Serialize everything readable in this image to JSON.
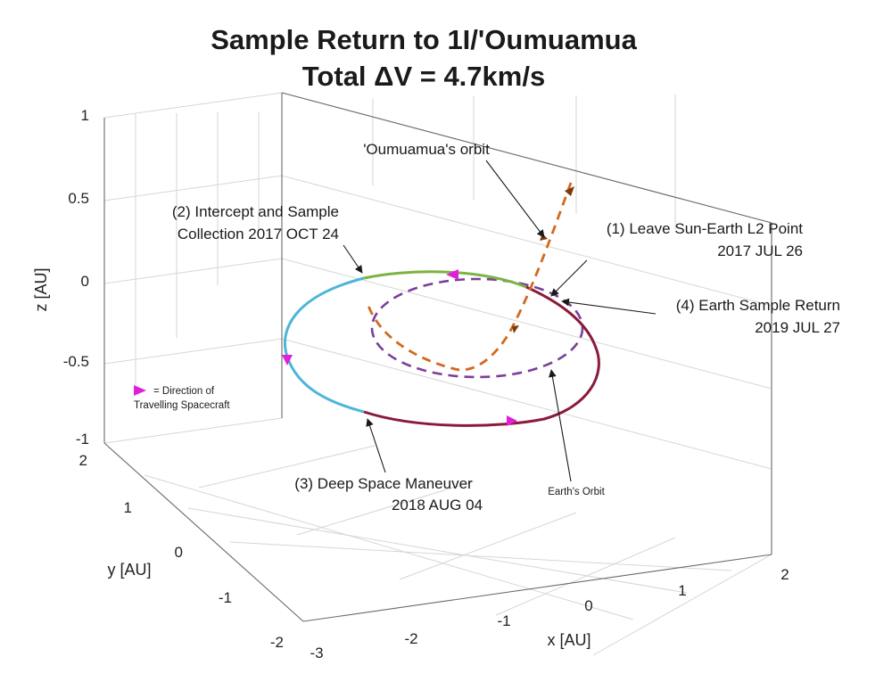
{
  "chart_data": {
    "type": "line",
    "projection": "3d",
    "title": [
      "Sample Return to 1I/'Oumuamua",
      "Total ΔV = 4.7km/s"
    ],
    "xlabel": "x [AU]",
    "ylabel": "y [AU]",
    "zlabel": "z [AU]",
    "xlim": [
      -3,
      2
    ],
    "ylim": [
      -2,
      2
    ],
    "zlim": [
      -1,
      1
    ],
    "xticks": [
      "-3",
      "-2",
      "-1",
      "0",
      "1",
      "2"
    ],
    "yticks": [
      "-2",
      "-1",
      "0",
      "1",
      "2"
    ],
    "zticks": [
      "-1",
      "-0.5",
      "0",
      "0.5",
      "1"
    ],
    "grid": true,
    "series": [
      {
        "role": "oumuamua-orbit",
        "style": "dashed",
        "color": "#d2691e",
        "x": [
          0.96,
          0.7,
          0.4,
          0.18,
          -0.02,
          -0.3,
          -0.58,
          -0.82,
          -0.95,
          -1.02
        ],
        "y": [
          -1.33,
          -1.02,
          -0.66,
          -0.38,
          -0.11,
          0.14,
          0.38,
          0.58,
          0.72,
          0.81
        ],
        "z": [
          0.6,
          0.42,
          0.22,
          0.05,
          -0.13,
          -0.23,
          -0.19,
          -0.12,
          -0.04,
          0.03
        ]
      },
      {
        "role": "earth-orbit",
        "style": "dashed",
        "color": "#7b3f99",
        "x": [
          0,
          0.71,
          1,
          0.71,
          0,
          -0.71,
          -1,
          -0.71,
          0
        ],
        "y": [
          1,
          0.71,
          0,
          -0.71,
          -1,
          -0.71,
          0,
          0.71,
          1
        ],
        "z": [
          0,
          0,
          0,
          0,
          0,
          0,
          0,
          0,
          0
        ]
      },
      {
        "role": "transfer-leg-1",
        "style": "solid",
        "color": "#7cb342",
        "x": [
          0.46,
          0.1,
          -0.3,
          -0.55,
          -0.7
        ],
        "y": [
          -0.89,
          -0.46,
          0.02,
          0.48,
          0.84
        ],
        "z": [
          0,
          0,
          0,
          0,
          0
        ]
      },
      {
        "role": "transfer-leg-2",
        "style": "solid",
        "color": "#4db6d8",
        "x": [
          -0.7,
          -1.2,
          -1.85,
          -2.2,
          -2.05,
          -1.4
        ],
        "y": [
          0.84,
          1.45,
          1.55,
          1.1,
          0.55,
          0.2
        ],
        "z": [
          0,
          0,
          0,
          0,
          0,
          0
        ]
      },
      {
        "role": "transfer-leg-3",
        "style": "solid",
        "color": "#8b1a3a",
        "x": [
          -1.4,
          -0.5,
          0.5,
          1.25,
          1.35,
          0.8,
          0.46
        ],
        "y": [
          0.2,
          -0.3,
          -0.85,
          -1.3,
          -1.55,
          -1.2,
          -0.89
        ],
        "z": [
          0,
          0,
          0,
          0,
          0,
          0,
          0
        ]
      }
    ],
    "legend_note": "= Direction of Travelling Spacecraft",
    "legend_marker_color": "#e020d8",
    "annotations": {
      "oumuamua_orbit": "'Oumuamua's orbit",
      "leave_l2": [
        "(1) Leave Sun-Earth L2 Point",
        "2017 JUL 26"
      ],
      "intercept": [
        "(2) Intercept and Sample",
        "Collection 2017 OCT 24"
      ],
      "deep_space": [
        "(3) Deep Space Maneuver",
        "2018 AUG 04"
      ],
      "sample_return": [
        "(4) Earth Sample Return",
        "2019 JUL 27"
      ],
      "earth_orbit": "Earth's Orbit"
    }
  }
}
